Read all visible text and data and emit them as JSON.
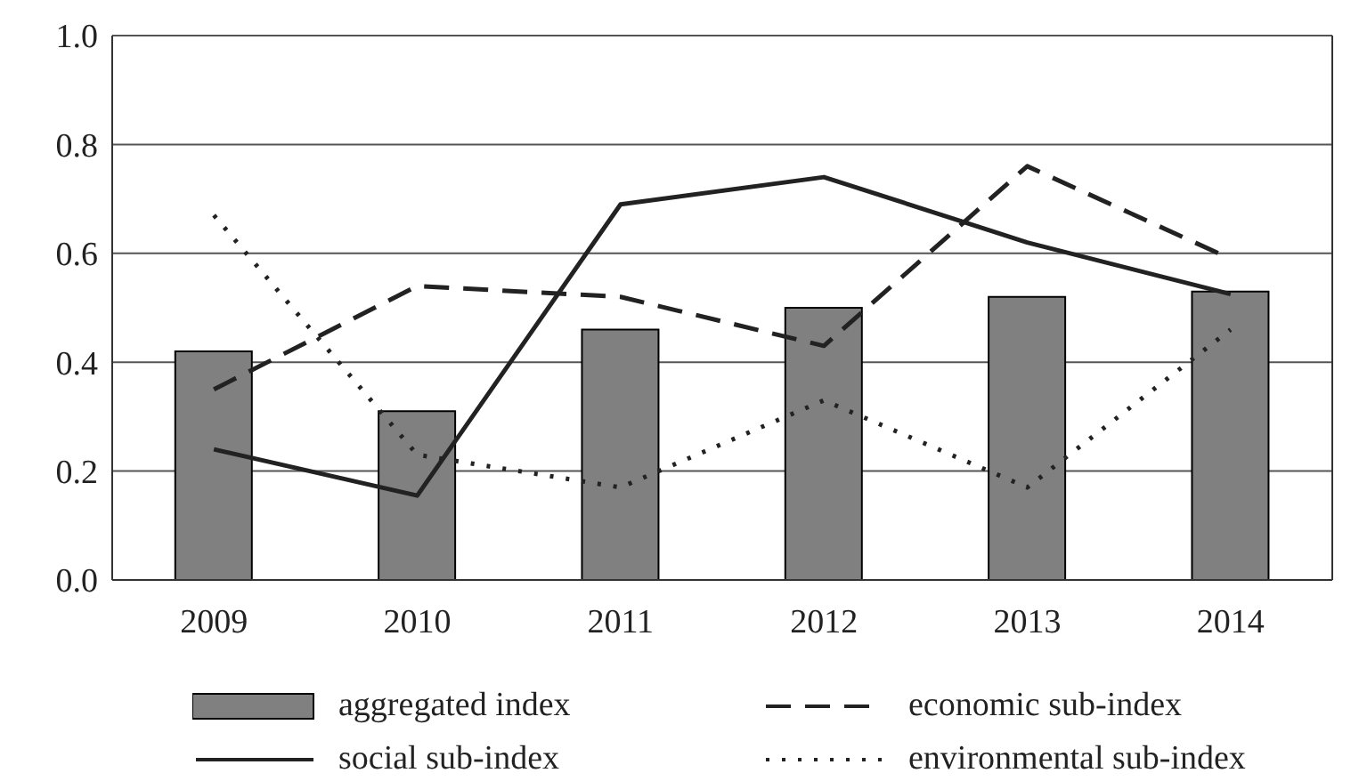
{
  "chart_data": {
    "type": "bar",
    "categories": [
      "2009",
      "2010",
      "2011",
      "2012",
      "2013",
      "2014"
    ],
    "series": [
      {
        "name": "aggregated index",
        "color": "#808080",
        "values": [
          0.42,
          0.31,
          0.46,
          0.5,
          0.52,
          0.53
        ]
      },
      {
        "name": "economic sub-index",
        "type": "line",
        "color": "#222222",
        "line_style": "dashed",
        "values": [
          0.35,
          0.54,
          0.52,
          0.43,
          0.76,
          0.59
        ]
      },
      {
        "name": "social sub-index",
        "type": "line",
        "color": "#222222",
        "line_style": "solid",
        "values": [
          0.24,
          0.155,
          0.69,
          0.74,
          0.62,
          0.525
        ]
      },
      {
        "name": "environmental sub-index",
        "type": "line",
        "color": "#222222",
        "line_style": "dotted",
        "values": [
          0.67,
          0.23,
          0.17,
          0.33,
          0.17,
          0.46
        ]
      }
    ],
    "ylim": [
      0,
      1
    ],
    "yticks": [
      {
        "value": 0,
        "label": "0.0"
      },
      0.2,
      0.4,
      0.6,
      0.8,
      {
        "value": 1,
        "label": "1.0"
      }
    ],
    "grid": "y",
    "legend": "bottom",
    "marker": "none"
  }
}
